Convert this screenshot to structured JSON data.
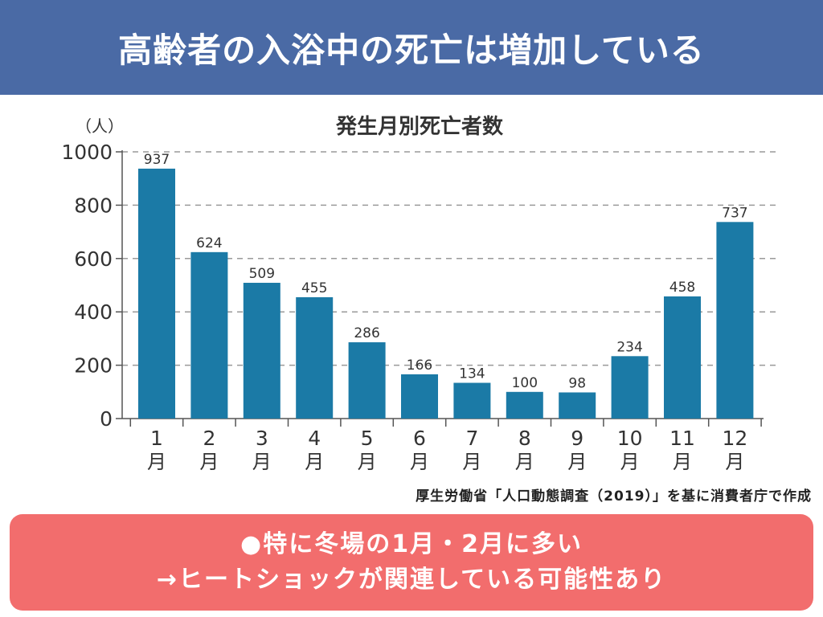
{
  "header": {
    "title": "高齢者の入浴中の死亡は増加している"
  },
  "chart_data": {
    "type": "bar",
    "title": "発生月別死亡者数",
    "ylabel": "（人）",
    "xlabel": "",
    "ylim": [
      0,
      1000
    ],
    "yticks": [
      "0",
      "200",
      "400",
      "600",
      "800",
      "1000"
    ],
    "ytick_values": [
      0,
      200,
      400,
      600,
      800,
      1000
    ],
    "grid": "dashed horizontal",
    "categories": [
      {
        "num": "1",
        "unit": "月"
      },
      {
        "num": "2",
        "unit": "月"
      },
      {
        "num": "3",
        "unit": "月"
      },
      {
        "num": "4",
        "unit": "月"
      },
      {
        "num": "5",
        "unit": "月"
      },
      {
        "num": "6",
        "unit": "月"
      },
      {
        "num": "7",
        "unit": "月"
      },
      {
        "num": "8",
        "unit": "月"
      },
      {
        "num": "9",
        "unit": "月"
      },
      {
        "num": "10",
        "unit": "月"
      },
      {
        "num": "11",
        "unit": "月"
      },
      {
        "num": "12",
        "unit": "月"
      }
    ],
    "values": [
      937,
      624,
      509,
      455,
      286,
      166,
      134,
      100,
      98,
      234,
      458,
      737
    ],
    "bar_color": "#1b7aa6"
  },
  "source": "厚生労働省「人口動態調査（2019）」を基に消費者庁で作成",
  "note": {
    "line1": "●特に冬場の1月・2月に多い",
    "line2": "→ヒートショックが関連している可能性あり"
  },
  "colors": {
    "banner": "#4a6aa5",
    "note": "#f26d6d",
    "bar": "#1b7aa6"
  }
}
